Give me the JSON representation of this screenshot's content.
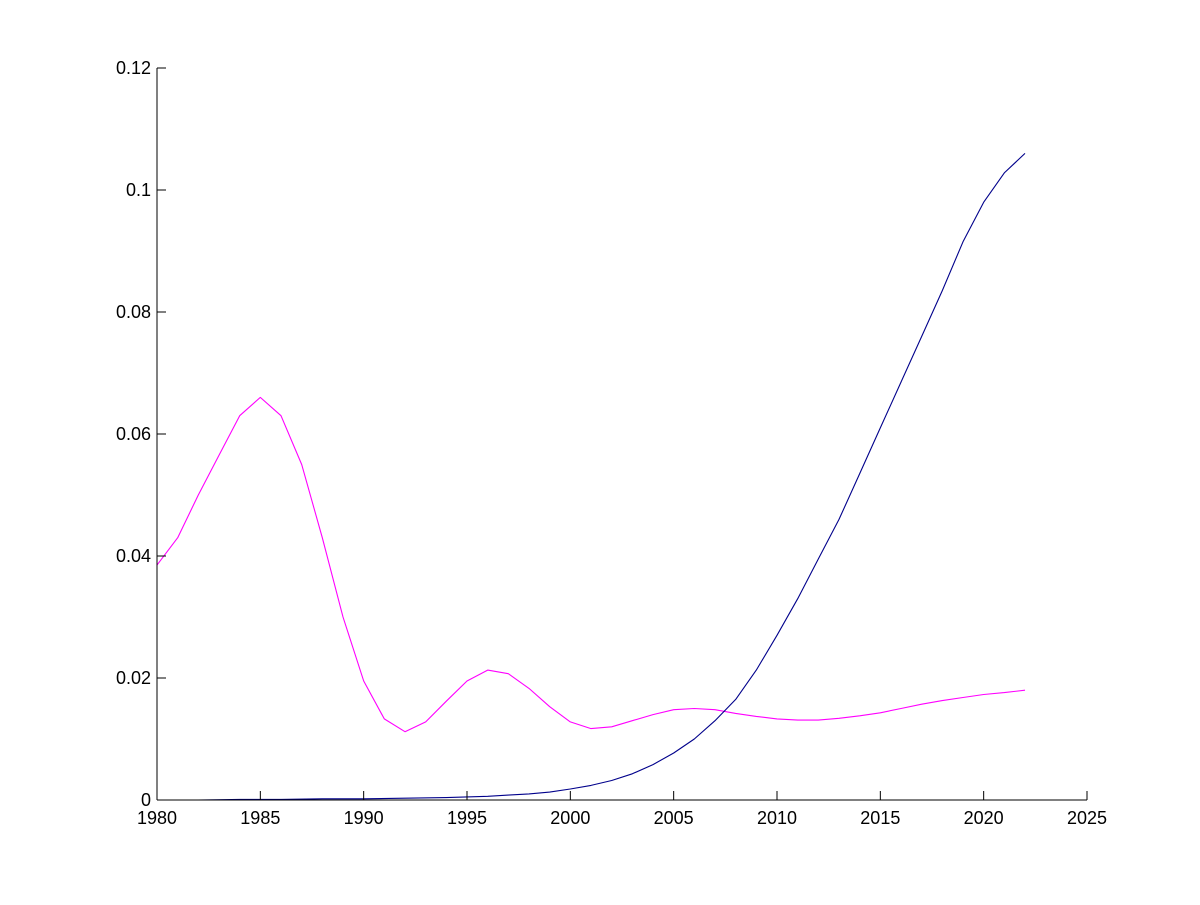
{
  "chart_data": {
    "type": "line",
    "title": "",
    "xlabel": "",
    "ylabel": "",
    "xlim": [
      1980,
      2025
    ],
    "ylim": [
      0,
      0.12
    ],
    "xticks": [
      1980,
      1985,
      1990,
      1995,
      2000,
      2005,
      2010,
      2015,
      2020,
      2025
    ],
    "xtick_labels": [
      "1980",
      "1985",
      "1990",
      "1995",
      "2000",
      "2005",
      "2010",
      "2015",
      "2020",
      "2025"
    ],
    "yticks": [
      0,
      0.02,
      0.04,
      0.06,
      0.08,
      0.1,
      0.12
    ],
    "ytick_labels": [
      "0",
      "0.02",
      "0.04",
      "0.06",
      "0.08",
      "0.1",
      "0.12"
    ],
    "grid": false,
    "legend": "none",
    "series": [
      {
        "color": "#ff00ff",
        "x": [
          1980,
          1981,
          1982,
          1983,
          1984,
          1985,
          1986,
          1987,
          1988,
          1989,
          1990,
          1991,
          1992,
          1993,
          1994,
          1995,
          1996,
          1997,
          1998,
          1999,
          2000,
          2001,
          2002,
          2003,
          2004,
          2005,
          2006,
          2007,
          2008,
          2009,
          2010,
          2011,
          2012,
          2013,
          2014,
          2015,
          2016,
          2017,
          2018,
          2019,
          2020,
          2021,
          2022
        ],
        "y": [
          0.0385,
          0.043,
          0.05,
          0.0565,
          0.063,
          0.066,
          0.063,
          0.055,
          0.043,
          0.03,
          0.0195,
          0.0133,
          0.0112,
          0.0128,
          0.0162,
          0.0195,
          0.0213,
          0.0207,
          0.0183,
          0.0153,
          0.0128,
          0.0117,
          0.012,
          0.013,
          0.014,
          0.0148,
          0.015,
          0.0148,
          0.0142,
          0.0137,
          0.0133,
          0.0131,
          0.0131,
          0.0134,
          0.0138,
          0.0143,
          0.015,
          0.0157,
          0.0163,
          0.0168,
          0.0173,
          0.0176,
          0.018
        ]
      },
      {
        "color": "#00008b",
        "x": [
          1980,
          1982,
          1984,
          1986,
          1988,
          1990,
          1992,
          1994,
          1996,
          1997,
          1998,
          1999,
          2000,
          2001,
          2002,
          2003,
          2004,
          2005,
          2006,
          2007,
          2008,
          2009,
          2010,
          2011,
          2012,
          2013,
          2014,
          2015,
          2016,
          2017,
          2018,
          2019,
          2020,
          2021,
          2022
        ],
        "y": [
          0.0,
          0.0,
          0.0001,
          0.0001,
          0.0002,
          0.0002,
          0.0003,
          0.0004,
          0.0006,
          0.0008,
          0.001,
          0.0013,
          0.0018,
          0.0024,
          0.0032,
          0.0043,
          0.0058,
          0.0077,
          0.01,
          0.013,
          0.0165,
          0.0213,
          0.027,
          0.033,
          0.0395,
          0.046,
          0.0535,
          0.061,
          0.0685,
          0.076,
          0.0835,
          0.0915,
          0.098,
          0.1028,
          0.106
        ]
      }
    ]
  }
}
